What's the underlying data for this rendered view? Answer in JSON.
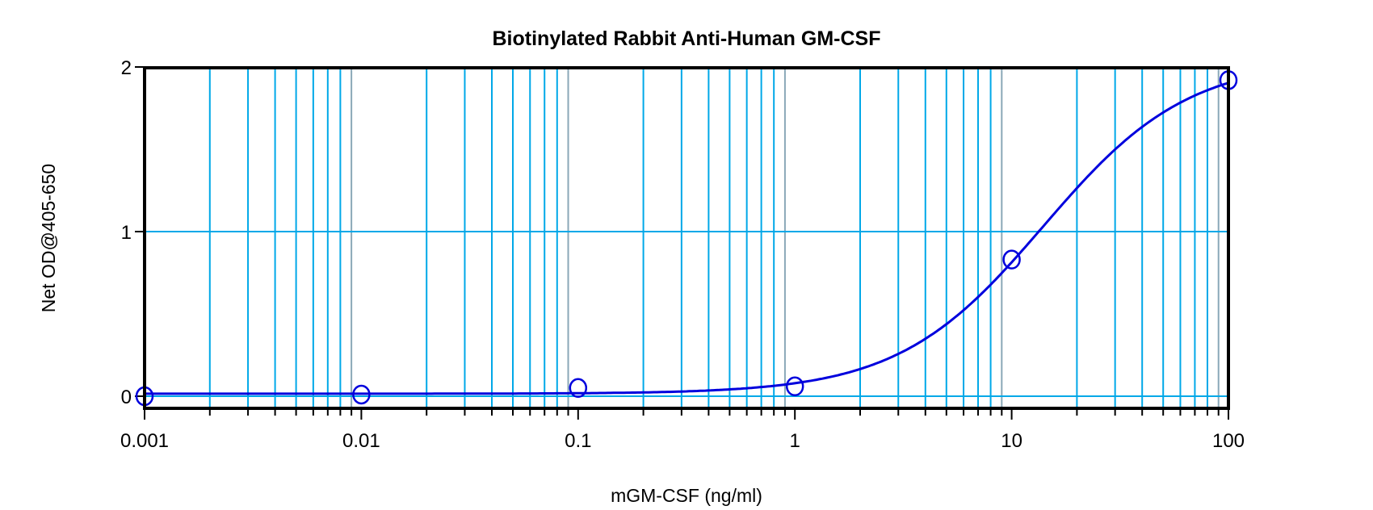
{
  "chart_data": {
    "type": "scatter",
    "title": "Biotinylated Rabbit Anti-Human GM-CSF",
    "xlabel": "mGM-CSF (ng/ml)",
    "ylabel": "Net OD@405-650",
    "xscale": "log",
    "xlim": [
      0.001,
      100
    ],
    "ylim": [
      -0.08,
      2
    ],
    "xticks": [
      0.001,
      0.01,
      0.1,
      1,
      10,
      100
    ],
    "xtick_labels": [
      "0.001",
      "0.01",
      "0.1",
      "1",
      "10",
      "100"
    ],
    "yticks": [
      0,
      1,
      2
    ],
    "ytick_labels": [
      "0",
      "1",
      "2"
    ],
    "grid": true,
    "series": [
      {
        "name": "data",
        "marker": "open-circle",
        "x": [
          0.001,
          0.01,
          0.1,
          1,
          10,
          100
        ],
        "y": [
          0.0,
          0.01,
          0.05,
          0.06,
          0.83,
          1.92
        ]
      },
      {
        "name": "4PL fit",
        "type": "line",
        "params": {
          "bottom": 0.015,
          "top": 2.05,
          "ec50": 14,
          "hill": 1.3
        }
      }
    ],
    "colors": {
      "data": "#0000DD",
      "grid": "#00A8E8",
      "axis": "#000000"
    }
  }
}
